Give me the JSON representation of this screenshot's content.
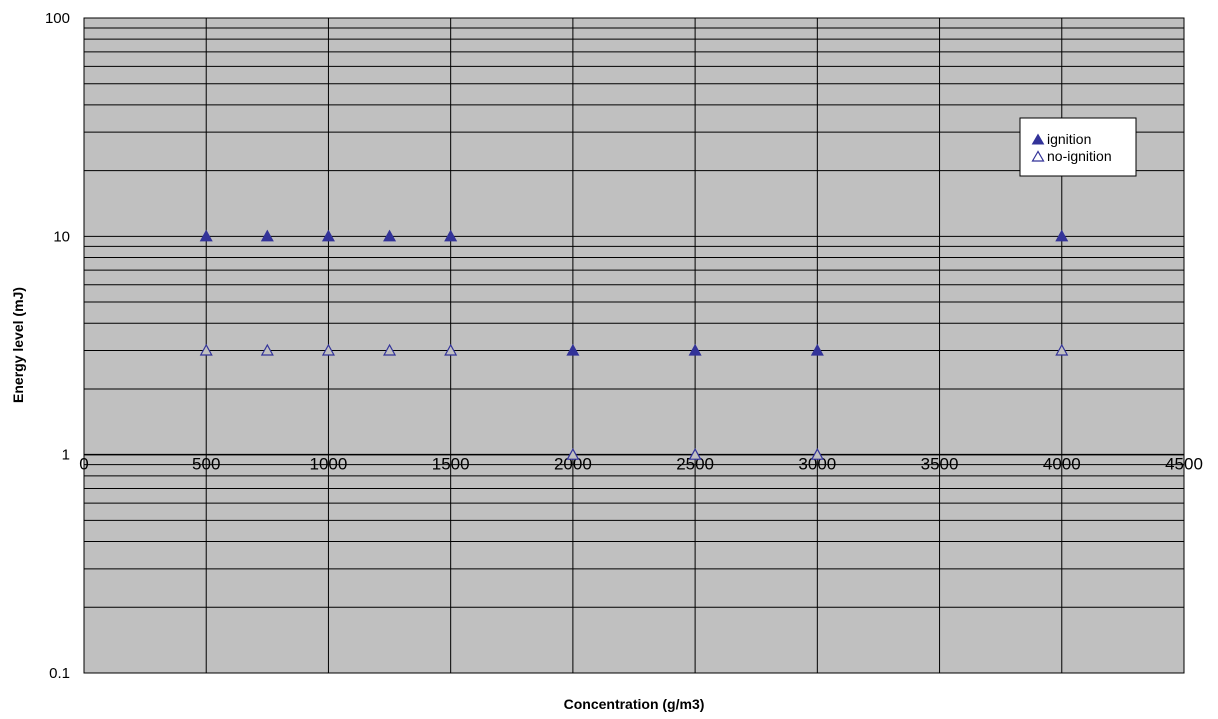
{
  "chart_data": {
    "type": "scatter",
    "xlabel": "Concentration (g/m3)",
    "ylabel": "Energy level (mJ)",
    "x_ticks": [
      "0",
      "500",
      "1000",
      "1500",
      "2000",
      "2500",
      "3000",
      "3500",
      "4000",
      "4500"
    ],
    "y_ticks": [
      "0.1",
      "1",
      "10",
      "100"
    ],
    "xlim": [
      0,
      4500
    ],
    "ylim": [
      0.1,
      100
    ],
    "y_scale": "log",
    "x_axis_crosses_at_y": 1,
    "grid": true,
    "plot_background": "#c0c0c0",
    "legend_position": "top-right",
    "series": [
      {
        "name": "ignition",
        "marker": "filled-triangle",
        "color": "#333399",
        "points": [
          [
            500,
            10
          ],
          [
            750,
            10
          ],
          [
            1000,
            10
          ],
          [
            1250,
            10
          ],
          [
            1500,
            10
          ],
          [
            2000,
            3
          ],
          [
            2500,
            3
          ],
          [
            3000,
            3
          ],
          [
            4000,
            10
          ]
        ]
      },
      {
        "name": "no-ignition",
        "marker": "open-triangle",
        "color": "#333399",
        "points": [
          [
            500,
            3
          ],
          [
            750,
            3
          ],
          [
            1000,
            3
          ],
          [
            1250,
            3
          ],
          [
            1500,
            3
          ],
          [
            2000,
            1
          ],
          [
            2500,
            1
          ],
          [
            3000,
            1
          ],
          [
            4000,
            3
          ]
        ]
      }
    ]
  }
}
